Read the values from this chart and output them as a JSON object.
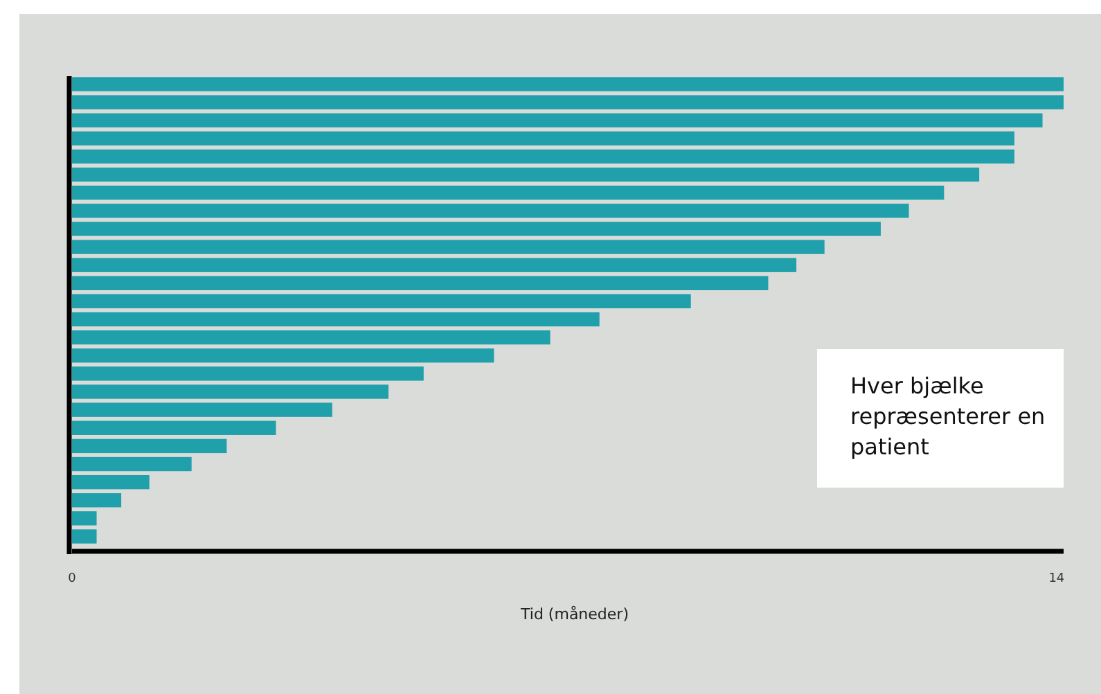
{
  "chart_data": {
    "type": "bar",
    "orientation": "horizontal",
    "xlabel": "Tid (måneder)",
    "categories": [
      null,
      null,
      null,
      null,
      null,
      null,
      null,
      null,
      null,
      null,
      null,
      null,
      null,
      null,
      null,
      null,
      null,
      null,
      null,
      null,
      null,
      null,
      null,
      null,
      null,
      null
    ],
    "values": [
      14.1,
      14.1,
      13.8,
      13.4,
      13.4,
      12.9,
      12.4,
      11.9,
      11.5,
      10.7,
      10.3,
      9.9,
      8.8,
      7.5,
      6.8,
      6.0,
      5.0,
      4.5,
      3.7,
      2.9,
      2.2,
      1.7,
      1.1,
      0.7,
      0.35,
      0.35
    ],
    "color": "#20a0ab",
    "xlim": [
      0,
      14.1
    ],
    "xticks": [
      0,
      14
    ],
    "annotations": [
      "Hver bjælke repræsenterer en patient"
    ],
    "grid": false
  }
}
